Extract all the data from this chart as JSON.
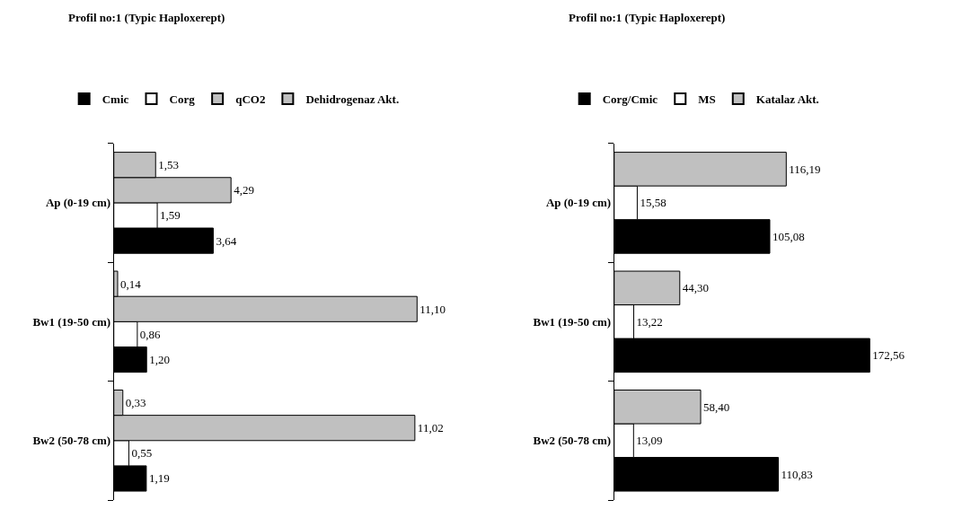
{
  "chart_data": [
    {
      "type": "bar",
      "orientation": "horizontal",
      "title": "Profil no:1 (Typic Haploxerept)",
      "categories": [
        "Ap (0-19 cm)",
        "Bw1 (19-50 cm)",
        "Bw2 (50-78 cm)"
      ],
      "legend": "top left",
      "tick_labels": "y",
      "series": [
        {
          "name": "Cmic",
          "color": "#000000",
          "values": [
            3.64,
            1.2,
            1.19
          ],
          "value_labels": [
            "3,64",
            "1,20",
            "1,19"
          ]
        },
        {
          "name": "Corg",
          "color": "#ffffff",
          "values": [
            1.59,
            0.86,
            0.55
          ],
          "value_labels": [
            "1,59",
            "0,86",
            "0,55"
          ]
        },
        {
          "name": "qCO2",
          "color": "#c0c0c0",
          "values": [
            4.29,
            11.1,
            11.02
          ],
          "value_labels": [
            "4,29",
            "11,10",
            "11,02"
          ]
        },
        {
          "name": "Dehidrogenaz Akt.",
          "color": "#c0c0c0",
          "values": [
            1.53,
            0.14,
            0.33
          ],
          "value_labels": [
            "1,53",
            "0,14",
            "0,33"
          ]
        }
      ]
    },
    {
      "type": "bar",
      "orientation": "horizontal",
      "title": "Profil no:1 (Typic Haploxerept)",
      "categories": [
        "Ap (0-19 cm)",
        "Bw1 (19-50 cm)",
        "Bw2 (50-78 cm)"
      ],
      "legend": "top left",
      "tick_labels": "y",
      "series": [
        {
          "name": "Corg/Cmic",
          "color": "#000000",
          "values": [
            105.08,
            172.56,
            110.83
          ],
          "value_labels": [
            "105,08",
            "172,56",
            "110,83"
          ]
        },
        {
          "name": "MS",
          "color": "#ffffff",
          "values": [
            15.58,
            13.22,
            13.09
          ],
          "value_labels": [
            "15,58",
            "13,22",
            "13,09"
          ]
        },
        {
          "name": "Katalaz Akt.",
          "color": "#c0c0c0",
          "values": [
            116.19,
            44.3,
            58.4
          ],
          "value_labels": [
            "116,19",
            "44,30",
            "58,40"
          ]
        }
      ]
    }
  ]
}
